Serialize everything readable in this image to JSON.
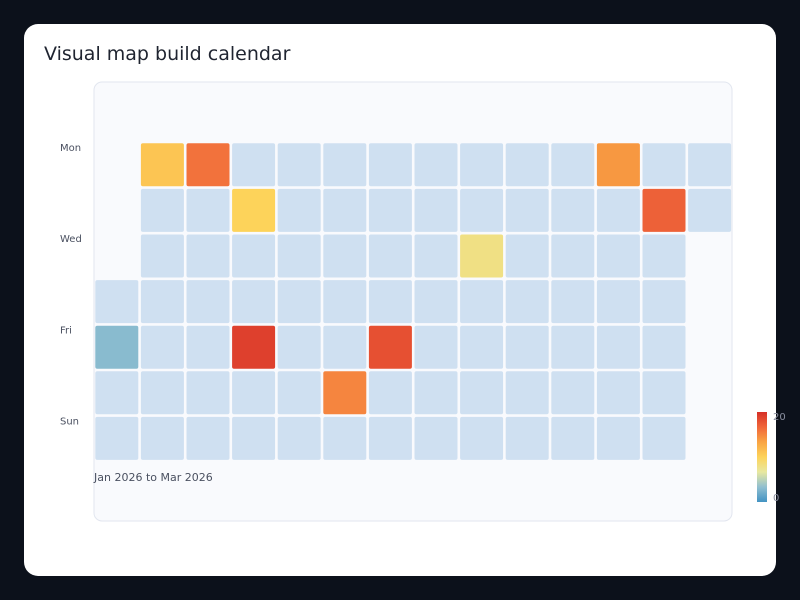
{
  "title": "Visual map build calendar",
  "chart_data": {
    "type": "heatmap",
    "title": "Visual map build calendar",
    "range_label": "Jan 2026 to Mar 2026",
    "start_date": "2026-01-01",
    "end_date": "2026-03-31",
    "day_labels": [
      {
        "row": 0,
        "text": "Mon"
      },
      {
        "row": 2,
        "text": "Wed"
      },
      {
        "row": 4,
        "text": "Fri"
      },
      {
        "row": 6,
        "text": "Sun"
      }
    ],
    "visual_map": {
      "min": 0,
      "max": 20,
      "min_label": "0",
      "max_label": "20",
      "colors": [
        "#4393c3",
        "#91bfd0",
        "#e8e8a0",
        "#fdd35a",
        "#f9a443",
        "#f0663a",
        "#d63027"
      ]
    },
    "empty_color": "#cfe0f1",
    "values": [
      {
        "date": "2026-01-02",
        "value": 3
      },
      {
        "date": "2026-01-05",
        "value": 11
      },
      {
        "date": "2026-01-12",
        "value": 16
      },
      {
        "date": "2026-01-20",
        "value": 10
      },
      {
        "date": "2026-01-23",
        "value": 19
      },
      {
        "date": "2026-02-07",
        "value": 15
      },
      {
        "date": "2026-02-13",
        "value": 18
      },
      {
        "date": "2026-02-25",
        "value": 8
      },
      {
        "date": "2026-03-16",
        "value": 14
      },
      {
        "date": "2026-03-24",
        "value": 17
      }
    ]
  }
}
